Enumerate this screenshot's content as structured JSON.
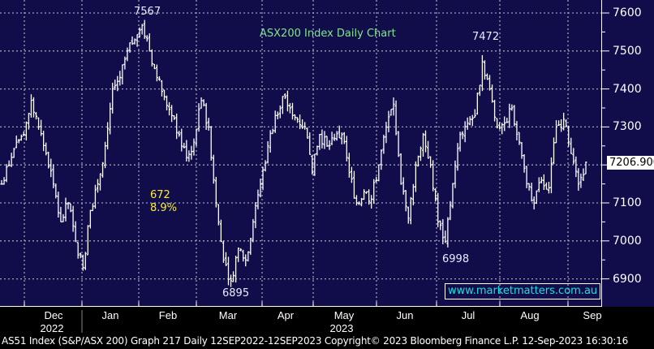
{
  "chart_data": {
    "type": "ohlc-bar",
    "title": "ASX200 Index Daily Chart",
    "ylim": [
      6830,
      7640
    ],
    "yticks": [
      6900,
      7000,
      7100,
      7200,
      7300,
      7400,
      7500,
      7600
    ],
    "months": [
      "Dec",
      "Jan",
      "Feb",
      "Mar",
      "Apr",
      "May",
      "Jun",
      "Jul",
      "Aug",
      "Sep"
    ],
    "years": [
      "2022",
      "2023"
    ],
    "last_value": "7206.900",
    "approx_close": [
      7150,
      7200,
      7260,
      7280,
      7370,
      7300,
      7230,
      7150,
      7050,
      7100,
      7000,
      6930,
      7080,
      7150,
      7250,
      7400,
      7430,
      7500,
      7530,
      7567,
      7500,
      7430,
      7380,
      7330,
      7280,
      7220,
      7260,
      7370,
      7300,
      7100,
      6950,
      6895,
      6980,
      6950,
      7050,
      7150,
      7250,
      7330,
      7380,
      7350,
      7320,
      7300,
      7180,
      7280,
      7250,
      7270,
      7280,
      7180,
      7100,
      7130,
      7110,
      7200,
      7300,
      7360,
      7150,
      7060,
      7200,
      7280,
      7200,
      7050,
      6998,
      7150,
      7280,
      7310,
      7330,
      7472,
      7400,
      7300,
      7310,
      7350,
      7260,
      7150,
      7100,
      7160,
      7140,
      7300,
      7320,
      7230,
      7150,
      7207
    ],
    "annotations": {
      "high_label": "7567",
      "high2_label": "7472",
      "low_label": "6895",
      "low2_label": "6998",
      "move_points": "672",
      "move_pct": "8.9%"
    },
    "colors": {
      "background": "#100d4a",
      "bars": "#ffffff",
      "title": "#7fe88a",
      "move": "#ffee22",
      "website": "#18e0e8"
    }
  },
  "website": "www.marketmatters.com.au",
  "footer": "AS51 Index (S&P/ASX 200) Graph 217  Daily 12SEP2022-12SEP2023  Copyright© 2023 Bloomberg Finance L.P.   12-Sep-2023 16:30:16"
}
